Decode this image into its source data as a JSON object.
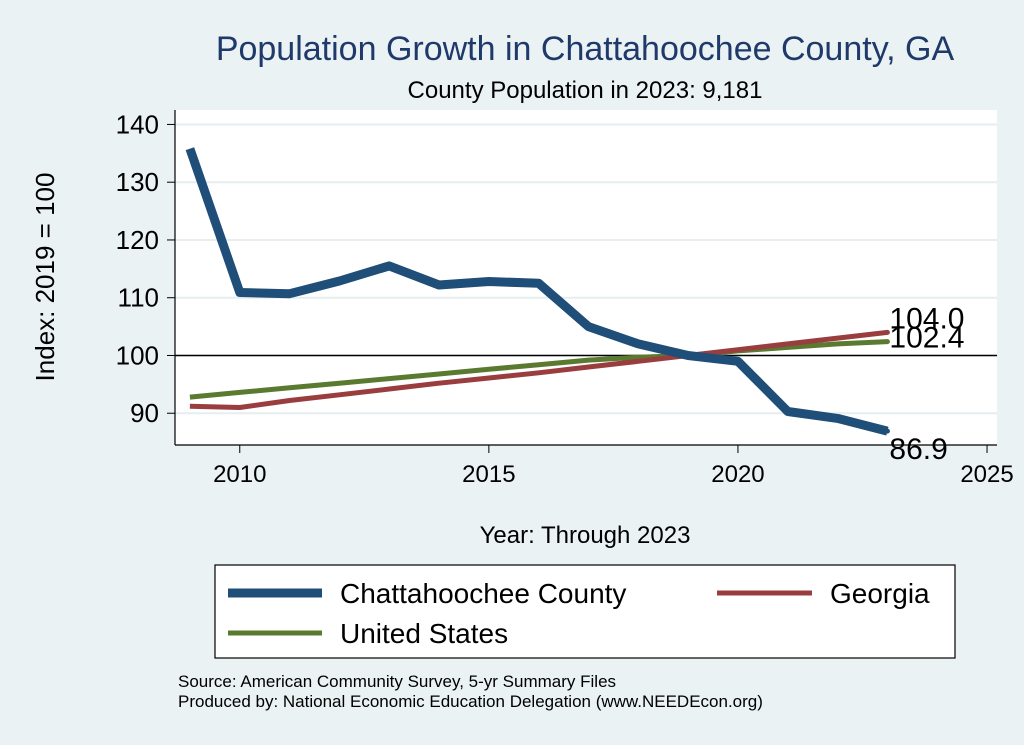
{
  "chart_data": {
    "type": "line",
    "title": "Population Growth in Chattahoochee County, GA",
    "subtitle": "County Population in 2023: 9,181",
    "xlabel": "Year: Through 2023",
    "ylabel": "Index: 2019 = 100",
    "xlim": [
      2008.7,
      2025.2
    ],
    "ylim": [
      84.5,
      142.5
    ],
    "xticks": [
      2010,
      2015,
      2020,
      2025
    ],
    "yticks": [
      90,
      100,
      110,
      120,
      130,
      140
    ],
    "reference_line": 100,
    "grid": true,
    "legend_position": "bottom",
    "x": [
      2009,
      2010,
      2011,
      2012,
      2013,
      2014,
      2015,
      2016,
      2017,
      2018,
      2019,
      2020,
      2021,
      2022,
      2023
    ],
    "series": [
      {
        "name": "Chattahoochee  County",
        "color": "#1f4e79",
        "values": [
          135.8,
          110.9,
          110.7,
          112.9,
          115.5,
          112.2,
          112.8,
          112.5,
          105.0,
          102.0,
          100.0,
          99.0,
          90.3,
          89.1,
          86.9
        ],
        "end_label": "86.9"
      },
      {
        "name": "Georgia",
        "color": "#993d3f",
        "values": [
          91.2,
          91.0,
          92.2,
          93.2,
          94.2,
          95.2,
          96.1,
          97.0,
          98.0,
          99.0,
          100.0,
          101.0,
          102.0,
          103.0,
          104.0
        ],
        "end_label": "104.0"
      },
      {
        "name": "United States",
        "color": "#5a7a30",
        "values": [
          92.8,
          93.6,
          94.4,
          95.2,
          96.0,
          96.8,
          97.6,
          98.4,
          99.2,
          99.7,
          100.0,
          100.8,
          101.4,
          102.0,
          102.4
        ],
        "end_label": "102.4"
      }
    ]
  },
  "footer": {
    "source": "Source: American Community Survey, 5-yr Summary Files",
    "produced_by": "Produced by: National Economic Education Delegation (www.NEEDEcon.org)"
  }
}
